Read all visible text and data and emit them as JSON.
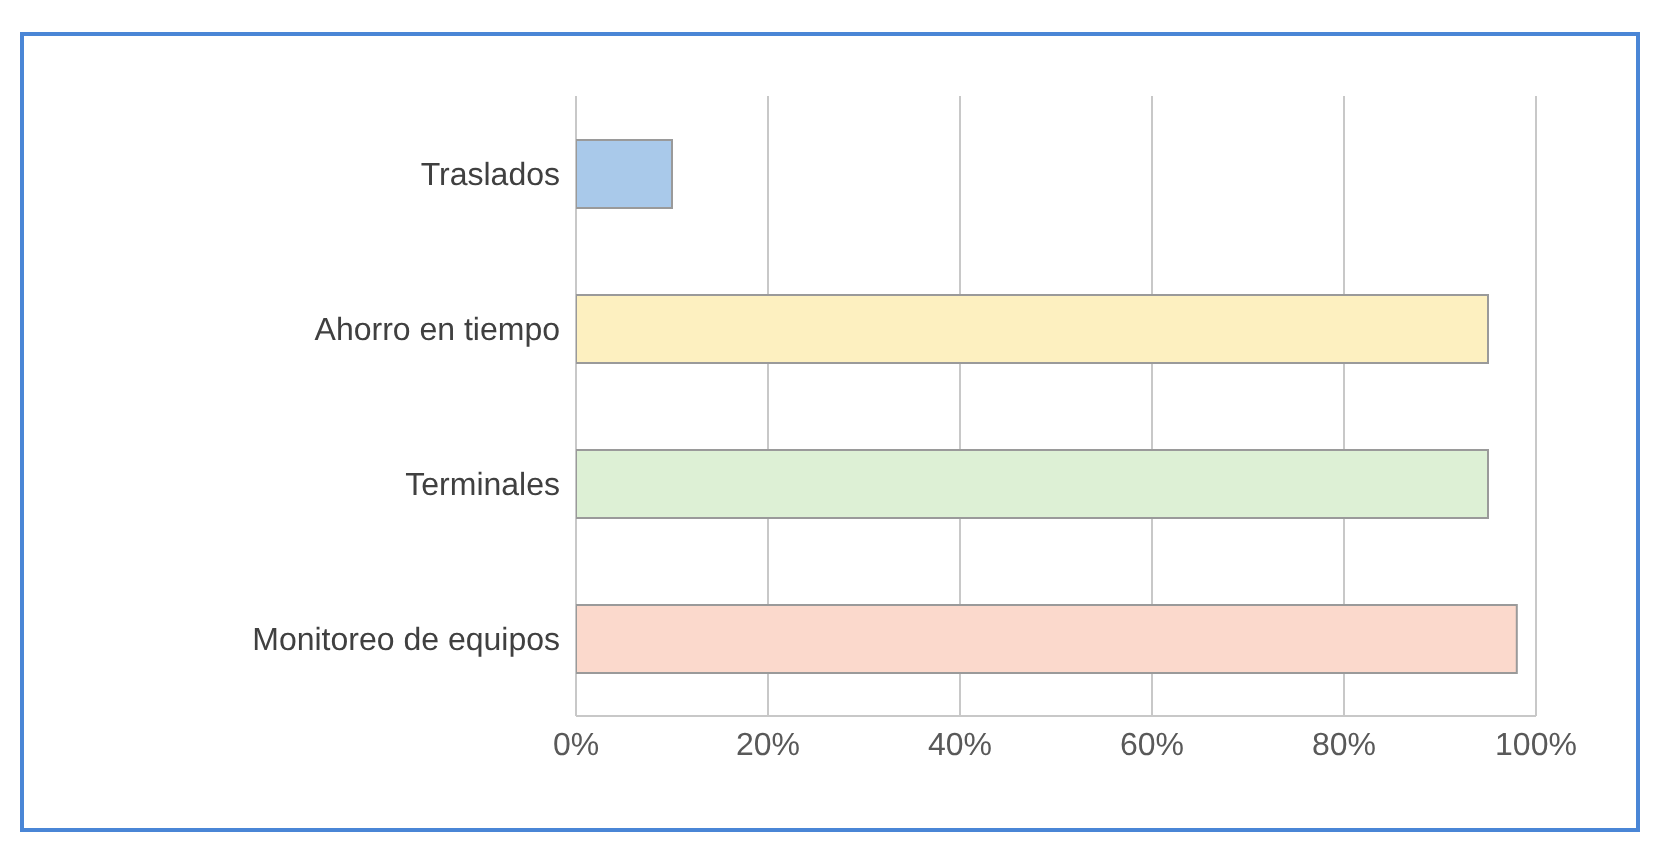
{
  "chart_data": {
    "type": "bar",
    "orientation": "horizontal",
    "categories": [
      "Traslados",
      "Ahorro en tiempo",
      "Terminales",
      "Monitoreo de equipos"
    ],
    "values": [
      10,
      95,
      95,
      98
    ],
    "colors": [
      "#a9c9ea",
      "#fdf0c0",
      "#ddf0d5",
      "#fbd9cc"
    ],
    "xlim": [
      0,
      100
    ],
    "xticks": [
      {
        "value": 0,
        "label": "0%"
      },
      {
        "value": 20,
        "label": "20%"
      },
      {
        "value": 40,
        "label": "40%"
      },
      {
        "value": 60,
        "label": "60%"
      },
      {
        "value": 80,
        "label": "80%"
      },
      {
        "value": 100,
        "label": "100%"
      }
    ],
    "grid": "x"
  }
}
